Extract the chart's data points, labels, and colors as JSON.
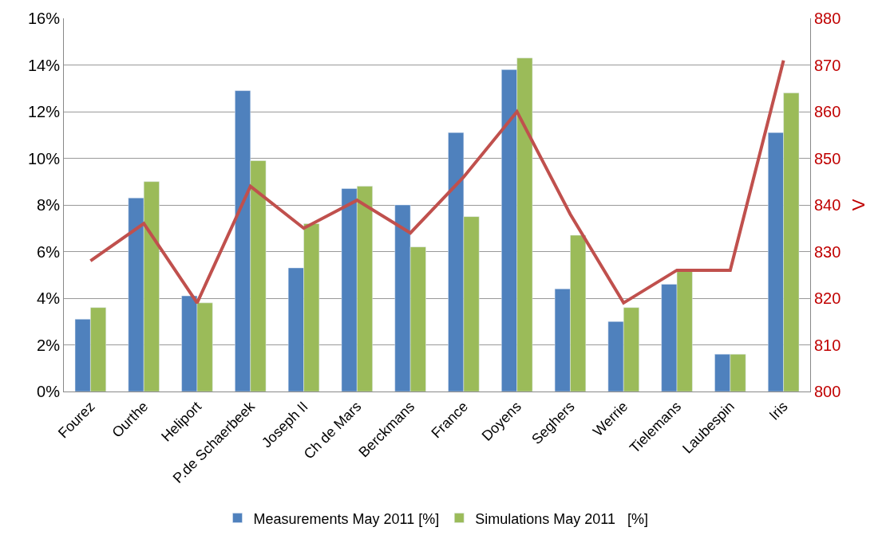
{
  "chart_data": {
    "type": "bar",
    "categories": [
      "Fourez",
      "Ourthe",
      "Heliport",
      "P.de Schaerbeek",
      "Joseph II",
      "Ch de Mars",
      "Berckmans",
      "France",
      "Doyens",
      "Seghers",
      "Werrie",
      "Tielemans",
      "Laubespin",
      "Iris"
    ],
    "series": [
      {
        "name": "Measurements May 2011 [%]",
        "color": "#4f81bd",
        "values": [
          3.1,
          8.3,
          4.1,
          12.9,
          5.3,
          8.7,
          8.0,
          11.1,
          13.8,
          4.4,
          3.0,
          4.6,
          1.6,
          11.1
        ]
      },
      {
        "name": "Simulations May 2011   [%]",
        "color": "#9bbb59",
        "values": [
          3.6,
          9.0,
          3.8,
          9.9,
          7.2,
          8.8,
          6.2,
          7.5,
          14.3,
          6.7,
          3.6,
          5.2,
          1.6,
          12.8
        ]
      },
      {
        "type": "line",
        "axis": "y2",
        "color": "#c0504d",
        "values": [
          828,
          836,
          819,
          844,
          835,
          841,
          834,
          846,
          860,
          838,
          819,
          826,
          826,
          871
        ]
      }
    ],
    "y2label": "V",
    "ylim": [
      0,
      16
    ],
    "yticks": [
      {
        "value": 0,
        "label": "0%"
      },
      {
        "value": 2,
        "label": "2%"
      },
      {
        "value": 4,
        "label": "4%"
      },
      {
        "value": 6,
        "label": "6%"
      },
      {
        "value": 8,
        "label": "8%"
      },
      {
        "value": 10,
        "label": "10%"
      },
      {
        "value": 12,
        "label": "12%"
      },
      {
        "value": 14,
        "label": "14%"
      },
      {
        "value": 16,
        "label": "16%"
      }
    ],
    "y2lim": [
      800,
      880
    ],
    "y2ticks": [
      800,
      810,
      820,
      830,
      840,
      850,
      860,
      870,
      880
    ],
    "grid": "y",
    "legend": "bottom",
    "marker": "none",
    "line_style": "solid"
  }
}
